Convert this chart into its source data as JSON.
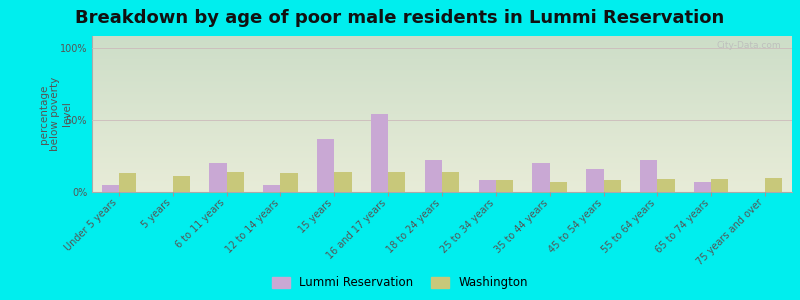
{
  "title": "Breakdown by age of poor male residents in Lummi Reservation",
  "ylabel": "percentage\nbelow poverty\nlevel",
  "categories": [
    "Under 5 years",
    "5 years",
    "6 to 11 years",
    "12 to 14 years",
    "15 years",
    "16 and 17 years",
    "18 to 24 years",
    "25 to 34 years",
    "35 to 44 years",
    "45 to 54 years",
    "55 to 64 years",
    "65 to 74 years",
    "75 years and over"
  ],
  "lummi_values": [
    5,
    0,
    20,
    5,
    37,
    54,
    22,
    8,
    20,
    16,
    22,
    7,
    0
  ],
  "washington_values": [
    13,
    11,
    14,
    13,
    14,
    14,
    14,
    8,
    7,
    8,
    9,
    9,
    10
  ],
  "lummi_color": "#c9a8d4",
  "washington_color": "#c8c87a",
  "bg_gradient_top": "#cddec8",
  "bg_gradient_bottom": "#e8ecd8",
  "outer_bg": "#00eeee",
  "yticks": [
    0,
    50,
    100
  ],
  "ytick_labels": [
    "0%",
    "50%",
    "100%"
  ],
  "ylim": [
    0,
    108
  ],
  "watermark": "City-Data.com",
  "title_fontsize": 13,
  "axis_label_fontsize": 7.5,
  "tick_fontsize": 7,
  "legend_fontsize": 8.5,
  "bar_width": 0.32
}
